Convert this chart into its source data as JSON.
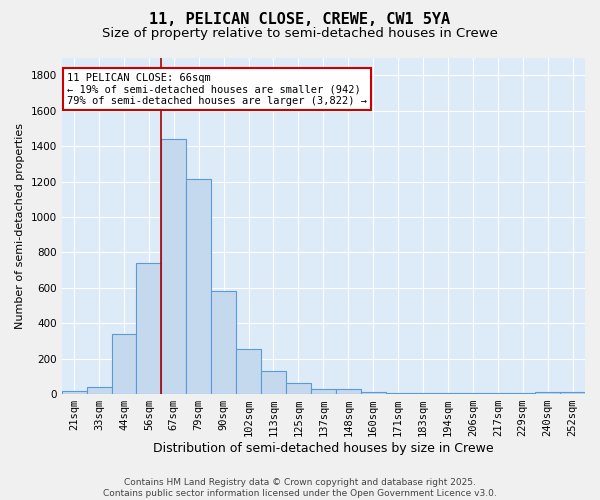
{
  "title": "11, PELICAN CLOSE, CREWE, CW1 5YA",
  "subtitle": "Size of property relative to semi-detached houses in Crewe",
  "xlabel": "Distribution of semi-detached houses by size in Crewe",
  "ylabel": "Number of semi-detached properties",
  "categories": [
    "21sqm",
    "33sqm",
    "44sqm",
    "56sqm",
    "67sqm",
    "79sqm",
    "90sqm",
    "102sqm",
    "113sqm",
    "125sqm",
    "137sqm",
    "148sqm",
    "160sqm",
    "171sqm",
    "183sqm",
    "194sqm",
    "206sqm",
    "217sqm",
    "229sqm",
    "240sqm",
    "252sqm"
  ],
  "values": [
    15,
    42,
    340,
    740,
    1440,
    1215,
    580,
    255,
    130,
    65,
    30,
    27,
    12,
    6,
    6,
    6,
    4,
    4,
    4,
    11,
    11
  ],
  "bar_color": "#c5d9ee",
  "bar_edge_color": "#5b9bd5",
  "fig_background_color": "#f0f0f0",
  "ax_background_color": "#ddeaf8",
  "grid_color": "#ffffff",
  "vline_color": "#aa0000",
  "vline_x_index": 3.5,
  "annotation_line1": "11 PELICAN CLOSE: 66sqm",
  "annotation_line2": "← 19% of semi-detached houses are smaller (942)",
  "annotation_line3": "79% of semi-detached houses are larger (3,822) →",
  "annotation_box_facecolor": "#ffffff",
  "annotation_box_edgecolor": "#cc0000",
  "ylim": [
    0,
    1900
  ],
  "yticks": [
    0,
    200,
    400,
    600,
    800,
    1000,
    1200,
    1400,
    1600,
    1800
  ],
  "footer_line1": "Contains HM Land Registry data © Crown copyright and database right 2025.",
  "footer_line2": "Contains public sector information licensed under the Open Government Licence v3.0.",
  "title_fontsize": 11,
  "subtitle_fontsize": 9.5,
  "xlabel_fontsize": 9,
  "ylabel_fontsize": 8,
  "tick_fontsize": 7.5,
  "annotation_fontsize": 7.5,
  "footer_fontsize": 6.5
}
